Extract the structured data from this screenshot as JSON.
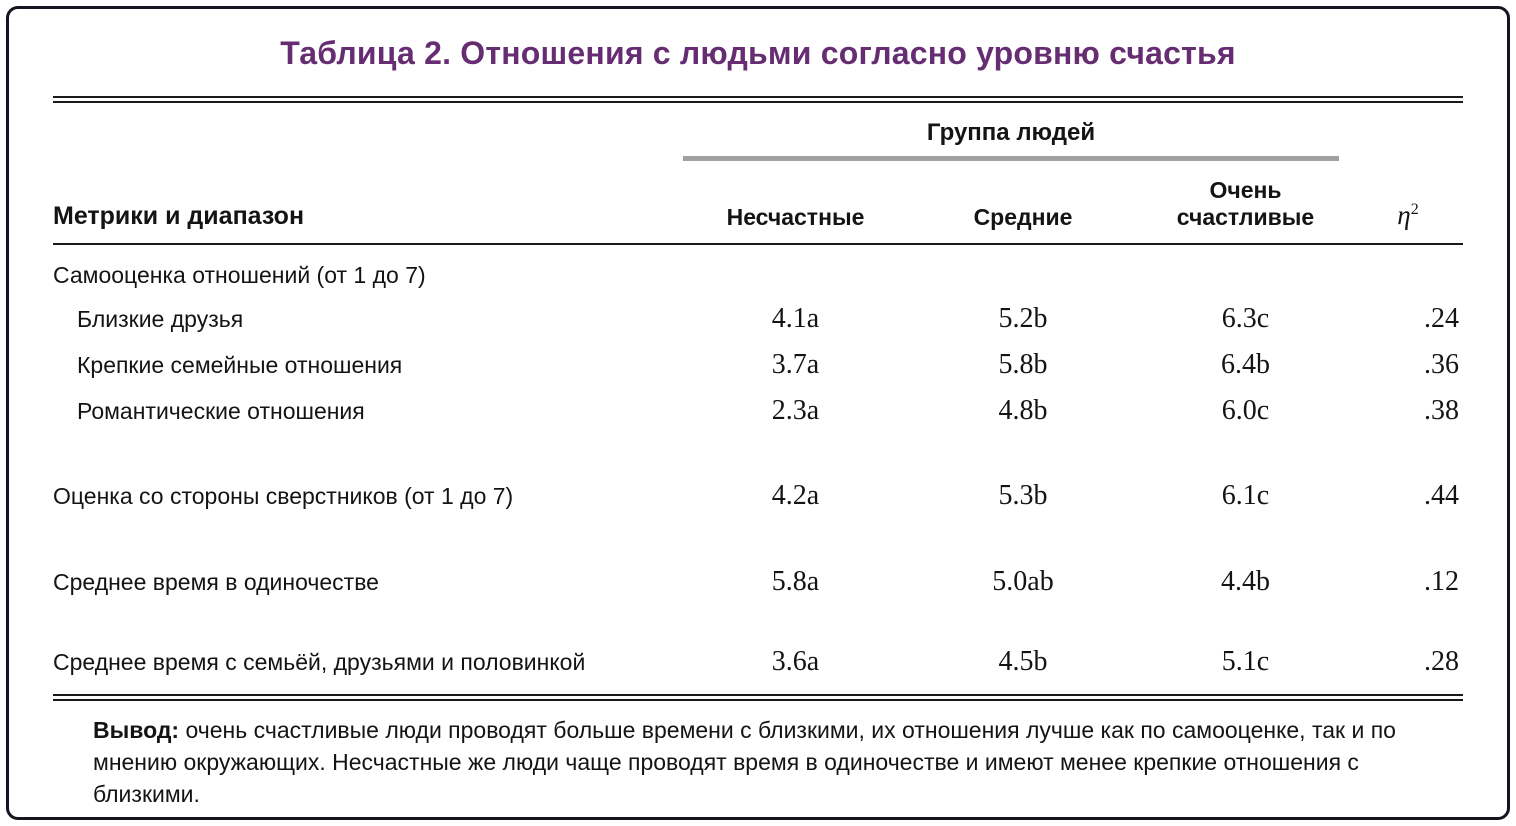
{
  "title": "Таблица 2. Отношения с людьми согласно уровню счастья",
  "colors": {
    "title_accent": "#662d73",
    "card_border": "#15151f",
    "group_underline": "#a1a1a1",
    "rule": "#1a1a1a"
  },
  "table": {
    "group_header": "Группа людей",
    "row_header": "Метрики и диапазон",
    "columns": [
      "Несчастные",
      "Средние",
      "Очень счастливые"
    ],
    "eta_symbol": "η",
    "eta_superscript": "2",
    "rows": [
      {
        "label": "Самооценка отношений (от 1 до 7)",
        "type": "section"
      },
      {
        "label": "Близкие друзья",
        "values": [
          "4.1a",
          "5.2b",
          "6.3c",
          ".24"
        ]
      },
      {
        "label": "Крепкие семейные отношения",
        "values": [
          "3.7a",
          "5.8b",
          "6.4b",
          ".36"
        ]
      },
      {
        "label": "Романтические отношения",
        "values": [
          "2.3a",
          "4.8b",
          "6.0c",
          ".38"
        ]
      },
      {
        "label": "Оценка со стороны сверстников (от 1 до 7)",
        "values": [
          "4.2a",
          "5.3b",
          "6.1c",
          ".44"
        ]
      },
      {
        "label": "Среднее время в одиночестве",
        "values": [
          "5.8a",
          "5.0ab",
          "4.4b",
          ".12"
        ]
      },
      {
        "label": "Среднее время с семьёй, друзьями и половинкой",
        "values": [
          "3.6a",
          "4.5b",
          "5.1c",
          ".28"
        ]
      }
    ]
  },
  "note": {
    "label": "Вывод:",
    "text": " очень счастливые люди проводят больше времени с близкими, их отношения лучше как по самооценке, так и по мнению окружающих. Несчастные же люди чаще проводят время в одиночестве и имеют менее крепкие отношения с близкими."
  }
}
